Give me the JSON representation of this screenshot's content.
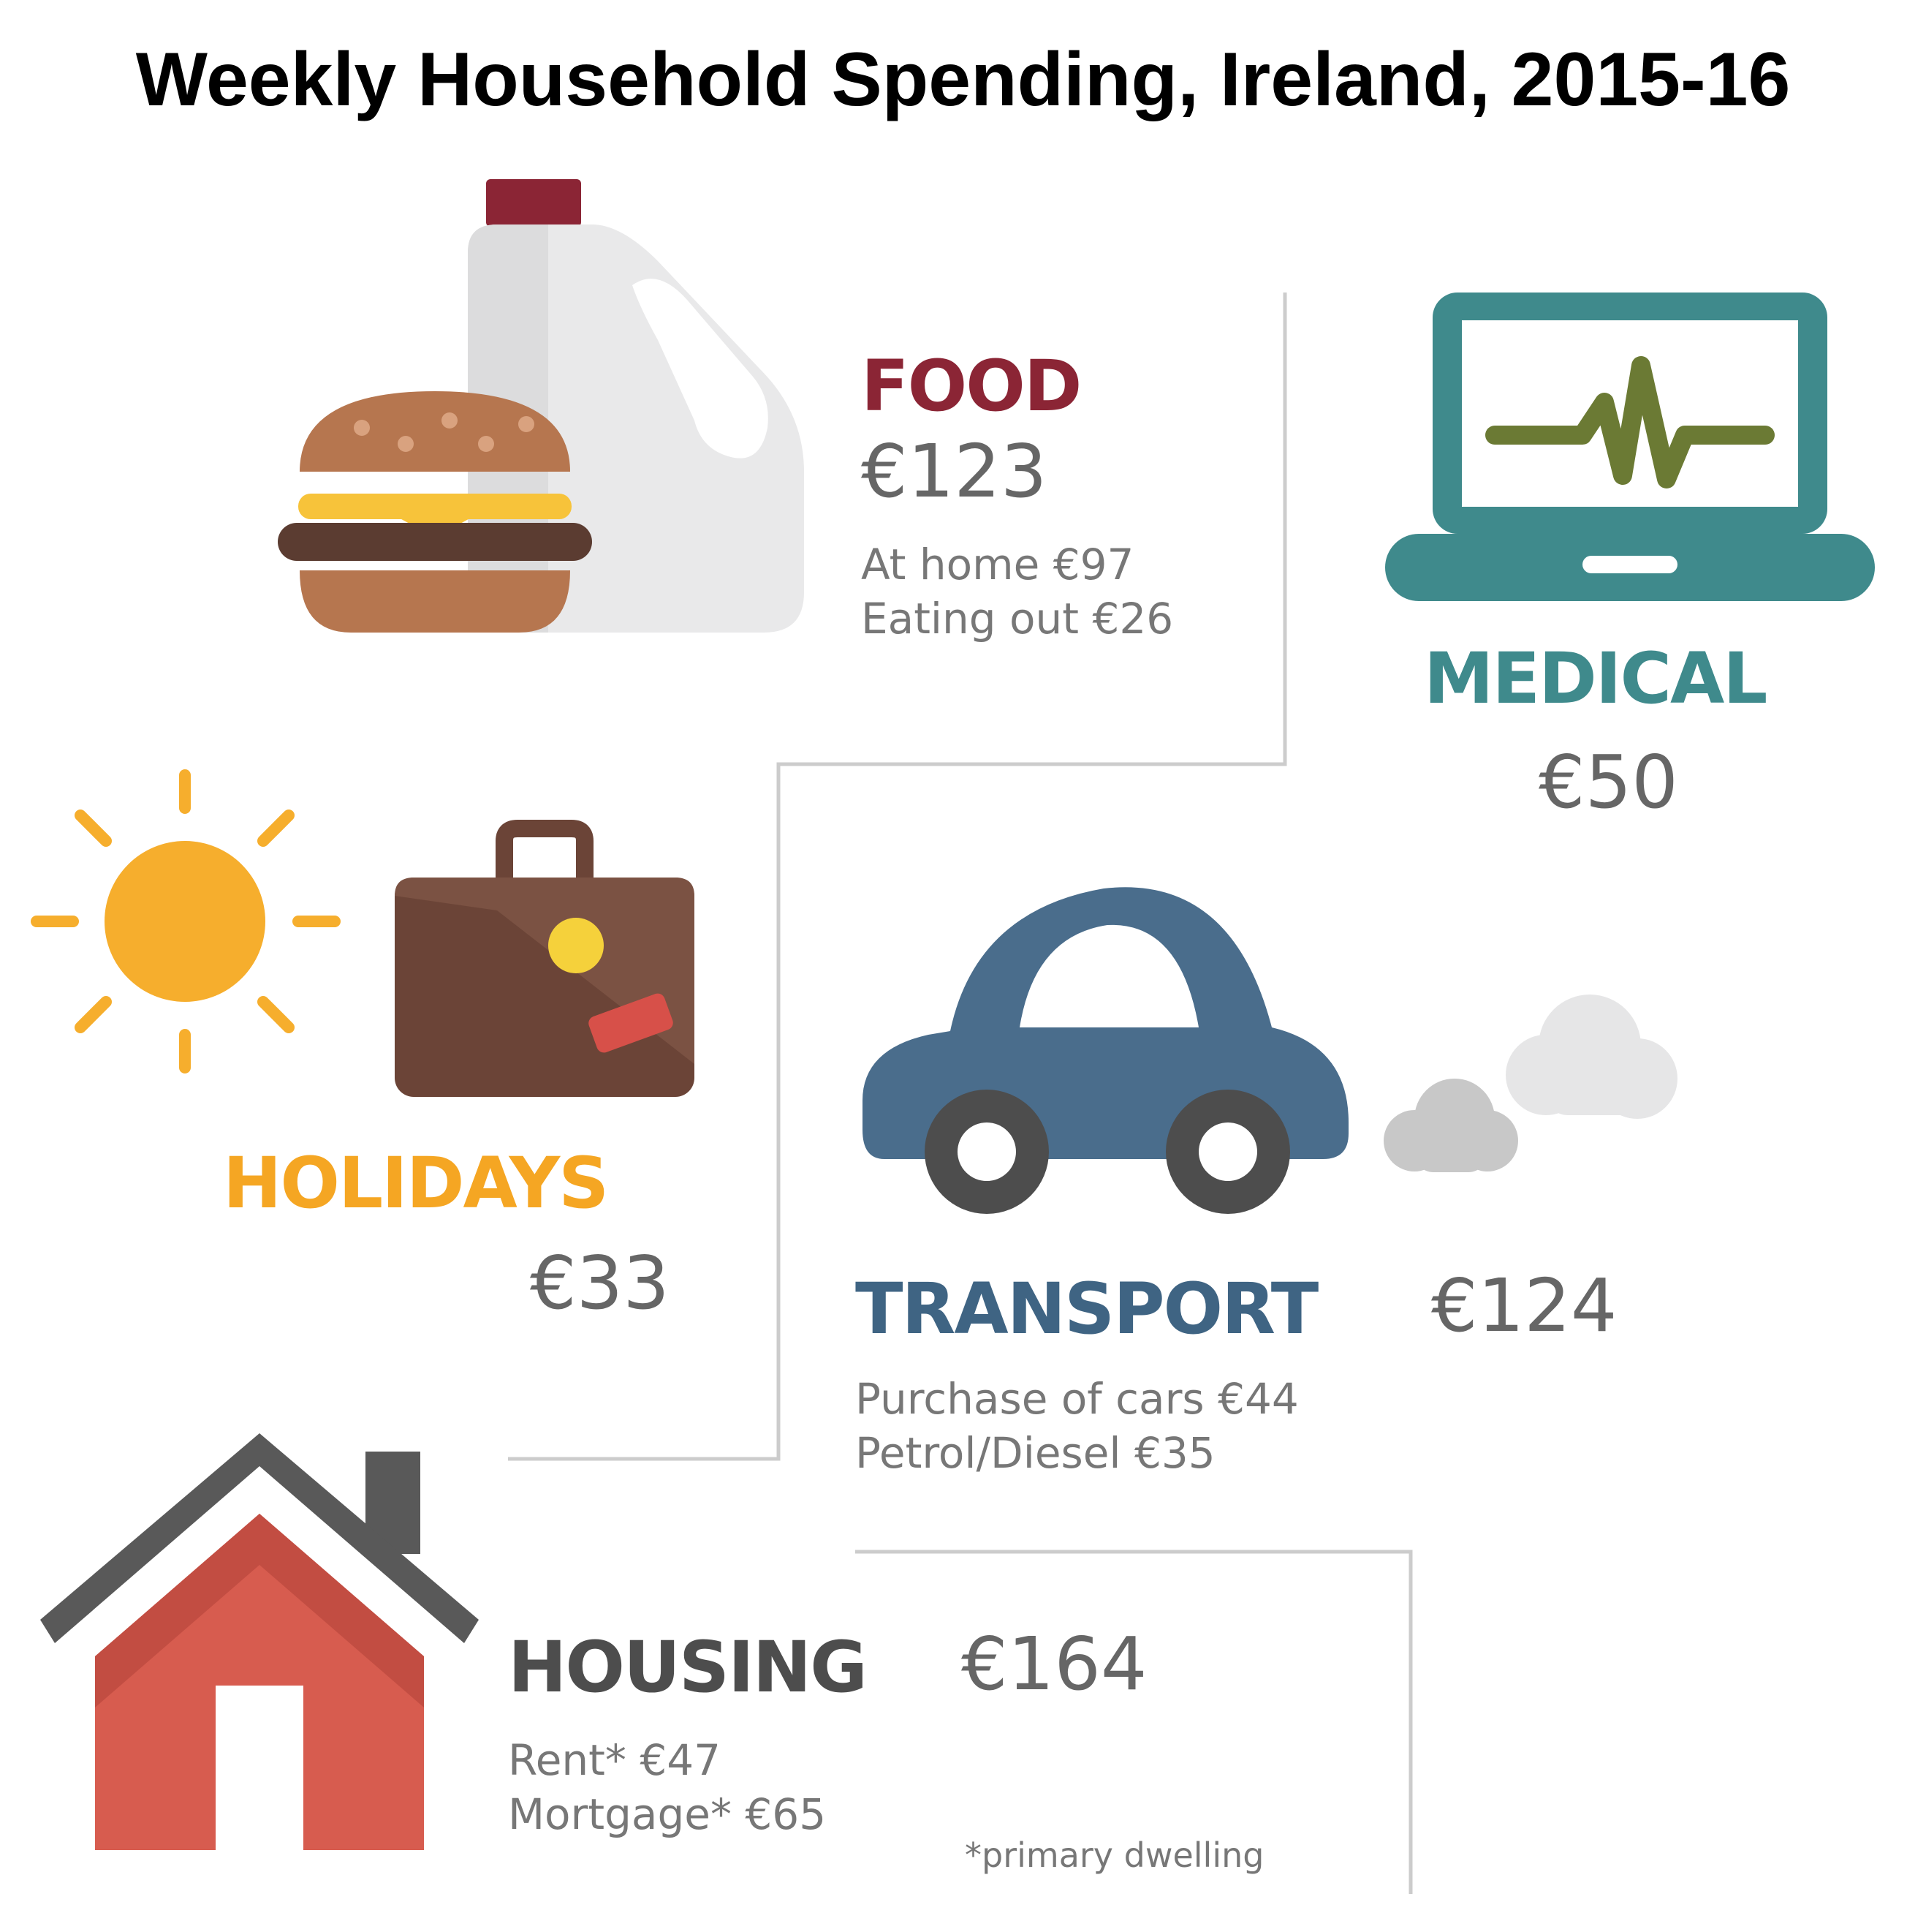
{
  "title": "Weekly Household Spending, Ireland, 2015-16",
  "colors": {
    "food": "#8b2535",
    "medical": "#3f8a8c",
    "holidays": "#f5a623",
    "transport": "#3f6483",
    "housing": "#4d4d4d",
    "amount_text": "#666666",
    "divider": "#cccccc"
  },
  "categories": {
    "food": {
      "label": "FOOD",
      "amount": "€123",
      "details": [
        "At home €97",
        "Eating out €26"
      ],
      "icons": [
        "milk-jug-icon",
        "burger-icon"
      ]
    },
    "medical": {
      "label": "MEDICAL",
      "amount": "€50",
      "icons": [
        "laptop-heartbeat-icon"
      ]
    },
    "holidays": {
      "label": "HOLIDAYS",
      "amount": "€33",
      "icons": [
        "sun-icon",
        "suitcase-icon"
      ]
    },
    "transport": {
      "label": "TRANSPORT",
      "amount": "€124",
      "details": [
        "Purchase of cars €44",
        "Petrol/Diesel €35"
      ],
      "icons": [
        "car-icon",
        "exhaust-cloud-icon"
      ]
    },
    "housing": {
      "label": "HOUSING",
      "amount": "€164",
      "details": [
        "Rent* €47",
        "Mortgage* €65"
      ],
      "footnote": "*primary dwelling",
      "icons": [
        "house-icon"
      ]
    }
  }
}
